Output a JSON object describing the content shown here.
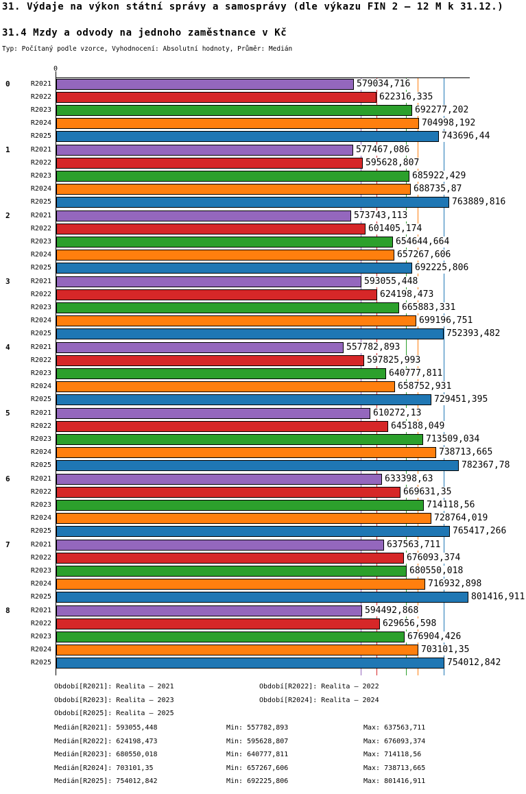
{
  "header": {
    "title": "31. Výdaje na výkon státní správy a samosprávy (dle výkazu FIN 2 – 12 M k 31.12.)",
    "subtitle": "31.4 Mzdy a odvody na jednoho zaměstnance v Kč",
    "meta": "Typ: Počítaný podle vzorce, Vyhodnocení: Absolutní hodnoty, Průměr: Medián"
  },
  "chart_data": {
    "type": "bar",
    "orientation": "horizontal",
    "axis_zero_label": "0",
    "xlim": [
      0,
      805000
    ],
    "grid": false,
    "series": [
      "R2021",
      "R2022",
      "R2023",
      "R2024",
      "R2025"
    ],
    "series_colors": {
      "R2021": "#9467bd",
      "R2022": "#d62728",
      "R2023": "#2ca02c",
      "R2024": "#ff7f0e",
      "R2025": "#1f77b4"
    },
    "groups": [
      {
        "label": "0",
        "bars": [
          {
            "series": "R2021",
            "value": 579034.716,
            "label": "579034,716"
          },
          {
            "series": "R2022",
            "value": 622316.335,
            "label": "622316,335"
          },
          {
            "series": "R2023",
            "value": 692277.202,
            "label": "692277,202"
          },
          {
            "series": "R2024",
            "value": 704998.192,
            "label": "704998,192"
          },
          {
            "series": "R2025",
            "value": 743696.44,
            "label": "743696,44"
          }
        ]
      },
      {
        "label": "1",
        "bars": [
          {
            "series": "R2021",
            "value": 577467.086,
            "label": "577467,086"
          },
          {
            "series": "R2022",
            "value": 595628.807,
            "label": "595628,807"
          },
          {
            "series": "R2023",
            "value": 685922.429,
            "label": "685922,429"
          },
          {
            "series": "R2024",
            "value": 688735.87,
            "label": "688735,87"
          },
          {
            "series": "R2025",
            "value": 763889.816,
            "label": "763889,816"
          }
        ]
      },
      {
        "label": "2",
        "bars": [
          {
            "series": "R2021",
            "value": 573743.113,
            "label": "573743,113"
          },
          {
            "series": "R2022",
            "value": 601405.174,
            "label": "601405,174"
          },
          {
            "series": "R2023",
            "value": 654644.664,
            "label": "654644,664"
          },
          {
            "series": "R2024",
            "value": 657267.606,
            "label": "657267,606"
          },
          {
            "series": "R2025",
            "value": 692225.806,
            "label": "692225,806"
          }
        ]
      },
      {
        "label": "3",
        "bars": [
          {
            "series": "R2021",
            "value": 593055.448,
            "label": "593055,448"
          },
          {
            "series": "R2022",
            "value": 624198.473,
            "label": "624198,473"
          },
          {
            "series": "R2023",
            "value": 665883.331,
            "label": "665883,331"
          },
          {
            "series": "R2024",
            "value": 699196.751,
            "label": "699196,751"
          },
          {
            "series": "R2025",
            "value": 752393.482,
            "label": "752393,482"
          }
        ]
      },
      {
        "label": "4",
        "bars": [
          {
            "series": "R2021",
            "value": 557782.893,
            "label": "557782,893"
          },
          {
            "series": "R2022",
            "value": 597825.993,
            "label": "597825,993"
          },
          {
            "series": "R2023",
            "value": 640777.811,
            "label": "640777,811"
          },
          {
            "series": "R2024",
            "value": 658752.931,
            "label": "658752,931"
          },
          {
            "series": "R2025",
            "value": 729451.395,
            "label": "729451,395"
          }
        ]
      },
      {
        "label": "5",
        "bars": [
          {
            "series": "R2021",
            "value": 610272.13,
            "label": "610272,13"
          },
          {
            "series": "R2022",
            "value": 645188.049,
            "label": "645188,049"
          },
          {
            "series": "R2023",
            "value": 713509.034,
            "label": "713509,034"
          },
          {
            "series": "R2024",
            "value": 738713.665,
            "label": "738713,665"
          },
          {
            "series": "R2025",
            "value": 782367.78,
            "label": "782367,78"
          }
        ]
      },
      {
        "label": "6",
        "bars": [
          {
            "series": "R2021",
            "value": 633398.63,
            "label": "633398,63"
          },
          {
            "series": "R2022",
            "value": 669631.35,
            "label": "669631,35"
          },
          {
            "series": "R2023",
            "value": 714118.56,
            "label": "714118,56"
          },
          {
            "series": "R2024",
            "value": 728764.019,
            "label": "728764,019"
          },
          {
            "series": "R2025",
            "value": 765417.266,
            "label": "765417,266"
          }
        ]
      },
      {
        "label": "7",
        "bars": [
          {
            "series": "R2021",
            "value": 637563.711,
            "label": "637563,711"
          },
          {
            "series": "R2022",
            "value": 676093.374,
            "label": "676093,374"
          },
          {
            "series": "R2023",
            "value": 680550.018,
            "label": "680550,018"
          },
          {
            "series": "R2024",
            "value": 716932.898,
            "label": "716932,898"
          },
          {
            "series": "R2025",
            "value": 801416.911,
            "label": "801416,911"
          }
        ]
      },
      {
        "label": "8",
        "bars": [
          {
            "series": "R2021",
            "value": 594492.868,
            "label": "594492,868"
          },
          {
            "series": "R2022",
            "value": 629656.598,
            "label": "629656,598"
          },
          {
            "series": "R2023",
            "value": 676904.426,
            "label": "676904,426"
          },
          {
            "series": "R2024",
            "value": 703101.35,
            "label": "703101,35"
          },
          {
            "series": "R2025",
            "value": 754012.842,
            "label": "754012,842"
          }
        ]
      }
    ],
    "median_lines": [
      {
        "series": "R2021",
        "value": 593055.448
      },
      {
        "series": "R2022",
        "value": 624198.473
      },
      {
        "series": "R2023",
        "value": 680550.018
      },
      {
        "series": "R2024",
        "value": 703101.35
      },
      {
        "series": "R2025",
        "value": 754012.842
      }
    ]
  },
  "legend": {
    "periods": [
      "Období[R2021]: Realita – 2021",
      "Období[R2022]: Realita – 2022",
      "Období[R2023]: Realita – 2023",
      "Období[R2024]: Realita – 2024",
      "Období[R2025]: Realita – 2025"
    ],
    "stats": [
      {
        "median": "Medián[R2021]: 593055,448",
        "min": "Min: 557782,893",
        "max": "Max: 637563,711"
      },
      {
        "median": "Medián[R2022]: 624198,473",
        "min": "Min: 595628,807",
        "max": "Max: 676093,374"
      },
      {
        "median": "Medián[R2023]: 680550,018",
        "min": "Min: 640777,811",
        "max": "Max: 714118,56"
      },
      {
        "median": "Medián[R2024]: 703101,35",
        "min": "Min: 657267,606",
        "max": "Max: 738713,665"
      },
      {
        "median": "Medián[R2025]: 754012,842",
        "min": "Min: 692225,806",
        "max": "Max: 801416,911"
      }
    ]
  }
}
